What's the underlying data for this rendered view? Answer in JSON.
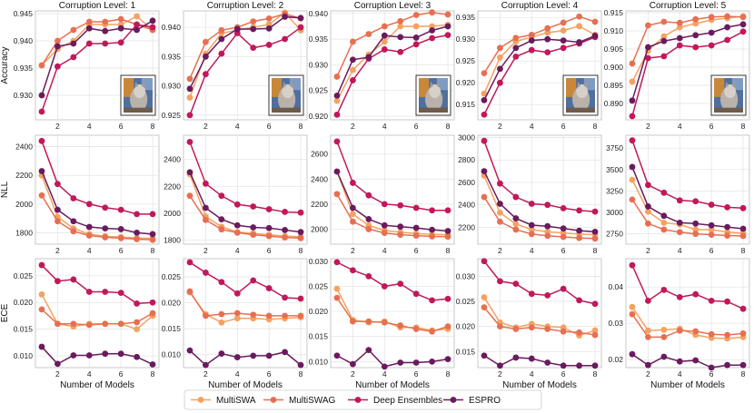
{
  "legend": {
    "items": [
      {
        "name": "MultiSWA",
        "color": "#f4a261"
      },
      {
        "name": "MultiSWAG",
        "color": "#e76f51"
      },
      {
        "name": "Deep Ensembles",
        "color": "#c2185b"
      },
      {
        "name": "ESPRO",
        "color": "#6a1b5e"
      }
    ]
  },
  "chart_data": {
    "type": "line",
    "layout": "3x5 grid",
    "xlabel": "Number of Models",
    "x": [
      1,
      2,
      3,
      4,
      5,
      6,
      7,
      8
    ],
    "xticks": [
      2,
      4,
      6,
      8
    ],
    "xlim": [
      0.6,
      8.4
    ],
    "column_titles": [
      "Corruption Level: 1",
      "Corruption Level: 2",
      "Corruption Level: 3",
      "Corruption Level: 4",
      "Corruption Level: 5"
    ],
    "row_labels": [
      "Accuracy",
      "NLL",
      "ECE"
    ],
    "series_names": [
      "MultiSWA",
      "MultiSWAG",
      "Deep Ensembles",
      "ESPRO"
    ],
    "panels": [
      {
        "row": 0,
        "col": 0,
        "ylim": [
          0.9255,
          0.9455
        ],
        "yticks": [
          0.93,
          0.935,
          0.94,
          0.945
        ],
        "ytick_labels": [
          "0.930",
          "0.935",
          "0.940",
          "0.945"
        ],
        "inset_image": true,
        "series": [
          [
            0.9355,
            0.9385,
            0.94,
            0.943,
            0.943,
            0.943,
            0.9445,
            0.942
          ],
          [
            0.9355,
            0.94,
            0.942,
            0.9435,
            0.9435,
            0.944,
            0.943,
            0.942
          ],
          [
            0.927,
            0.9353,
            0.937,
            0.9395,
            0.9395,
            0.9397,
            0.943,
            0.9425
          ],
          [
            0.93,
            0.939,
            0.9395,
            0.9423,
            0.9418,
            0.9423,
            0.942,
            0.9437
          ]
        ]
      },
      {
        "row": 0,
        "col": 1,
        "ylim": [
          0.9242,
          0.9428
        ],
        "yticks": [
          0.925,
          0.93,
          0.935,
          0.94
        ],
        "ytick_labels": [
          "0.925",
          "0.930",
          "0.935",
          "0.940"
        ],
        "inset_image": true,
        "series": [
          [
            0.928,
            0.9355,
            0.939,
            0.9395,
            0.94,
            0.9405,
            0.9425,
            0.9395
          ],
          [
            0.9312,
            0.9375,
            0.9395,
            0.94,
            0.941,
            0.9415,
            0.9423,
            0.9415
          ],
          [
            0.925,
            0.932,
            0.9355,
            0.939,
            0.9365,
            0.937,
            0.938,
            0.94
          ],
          [
            0.9295,
            0.935,
            0.938,
            0.9397,
            0.9397,
            0.9398,
            0.9418,
            0.9416
          ]
        ]
      },
      {
        "row": 0,
        "col": 2,
        "ylim": [
          0.9193,
          0.9405
        ],
        "yticks": [
          0.92,
          0.925,
          0.93,
          0.935,
          0.94
        ],
        "ytick_labels": [
          "0.920",
          "0.925",
          "0.930",
          "0.935",
          "0.940"
        ],
        "inset_image": true,
        "series": [
          [
            0.923,
            0.929,
            0.932,
            0.9345,
            0.9375,
            0.9375,
            0.9375,
            0.9378
          ],
          [
            0.9277,
            0.9345,
            0.936,
            0.9375,
            0.9385,
            0.9397,
            0.9402,
            0.9398
          ],
          [
            0.9203,
            0.927,
            0.9312,
            0.933,
            0.9325,
            0.934,
            0.9352,
            0.9358
          ],
          [
            0.924,
            0.931,
            0.9315,
            0.9357,
            0.9354,
            0.9353,
            0.9367,
            0.9375
          ]
        ]
      },
      {
        "row": 0,
        "col": 3,
        "ylim": [
          0.9115,
          0.9365
        ],
        "yticks": [
          0.915,
          0.92,
          0.925,
          0.93,
          0.935
        ],
        "ytick_labels": [
          "0.915",
          "0.920",
          "0.925",
          "0.930",
          "0.935"
        ],
        "inset_image": true,
        "series": [
          [
            0.9175,
            0.9258,
            0.9295,
            0.9305,
            0.9315,
            0.932,
            0.933,
            0.931
          ],
          [
            0.9222,
            0.928,
            0.9303,
            0.931,
            0.9325,
            0.9338,
            0.9352,
            0.934
          ],
          [
            0.9127,
            0.92,
            0.926,
            0.9275,
            0.927,
            0.928,
            0.929,
            0.9305
          ],
          [
            0.916,
            0.9232,
            0.928,
            0.9297,
            0.93,
            0.9297,
            0.9293,
            0.9308
          ]
        ]
      },
      {
        "row": 0,
        "col": 4,
        "ylim": [
          0.8855,
          0.9155
        ],
        "yticks": [
          0.89,
          0.895,
          0.9,
          0.905,
          0.91,
          0.915
        ],
        "ytick_labels": [
          "0.890",
          "0.895",
          "0.900",
          "0.905",
          "0.910",
          "0.915"
        ],
        "inset_image": true,
        "series": [
          [
            0.896,
            0.9045,
            0.9085,
            0.911,
            0.912,
            0.913,
            0.9135,
            0.914
          ],
          [
            0.901,
            0.9115,
            0.9125,
            0.9122,
            0.9132,
            0.9138,
            0.914,
            0.9138
          ],
          [
            0.8865,
            0.9025,
            0.903,
            0.906,
            0.9055,
            0.906,
            0.9075,
            0.9098
          ],
          [
            0.8908,
            0.9055,
            0.9072,
            0.908,
            0.9088,
            0.9095,
            0.911,
            0.9118
          ]
        ]
      },
      {
        "row": 1,
        "col": 0,
        "ylim": [
          1720,
          2480
        ],
        "yticks": [
          1800,
          2000,
          2200,
          2400
        ],
        "ytick_labels": [
          "1800",
          "2000",
          "2200",
          "2400"
        ],
        "inset_image": false,
        "series": [
          [
            2200,
            1910,
            1830,
            1790,
            1775,
            1770,
            1763,
            1760
          ],
          [
            2060,
            1880,
            1810,
            1780,
            1768,
            1762,
            1755,
            1750
          ],
          [
            2440,
            2140,
            2040,
            2000,
            1975,
            1960,
            1930,
            1930
          ],
          [
            2230,
            1960,
            1880,
            1840,
            1830,
            1825,
            1800,
            1790
          ]
        ]
      },
      {
        "row": 1,
        "col": 1,
        "ylim": [
          1770,
          2580
        ],
        "yticks": [
          1800,
          2000,
          2200,
          2400
        ],
        "ytick_labels": [
          "1800",
          "2000",
          "2200",
          "2400"
        ],
        "inset_image": false,
        "series": [
          [
            2290,
            1975,
            1900,
            1860,
            1850,
            1840,
            1830,
            1825
          ],
          [
            2130,
            1950,
            1880,
            1855,
            1840,
            1830,
            1820,
            1815
          ],
          [
            2530,
            2220,
            2130,
            2065,
            2050,
            2030,
            2010,
            2005
          ],
          [
            2305,
            2040,
            1955,
            1910,
            1895,
            1890,
            1875,
            1860
          ]
        ]
      },
      {
        "row": 1,
        "col": 2,
        "ylim": [
          1880,
          2750
        ],
        "yticks": [
          2000,
          2200,
          2400,
          2600
        ],
        "ytick_labels": [
          "2000",
          "2200",
          "2400",
          "2600"
        ],
        "inset_image": false,
        "series": [
          [
            2460,
            2120,
            2030,
            1990,
            1975,
            1965,
            1958,
            1955
          ],
          [
            2280,
            2060,
            2000,
            1970,
            1955,
            1948,
            1942,
            1940
          ],
          [
            2700,
            2370,
            2270,
            2200,
            2190,
            2170,
            2150,
            2150
          ],
          [
            2460,
            2170,
            2080,
            2030,
            2020,
            2010,
            1995,
            1985
          ]
        ]
      },
      {
        "row": 1,
        "col": 3,
        "ylim": [
          2050,
          3020
        ],
        "yticks": [
          2200,
          2400,
          2600,
          2800,
          3000
        ],
        "ytick_labels": [
          "2200",
          "2400",
          "2600",
          "2800",
          "3000"
        ],
        "inset_image": false,
        "series": [
          [
            2660,
            2330,
            2230,
            2180,
            2160,
            2150,
            2140,
            2135
          ],
          [
            2470,
            2250,
            2180,
            2140,
            2125,
            2115,
            2105,
            2100
          ],
          [
            2970,
            2590,
            2470,
            2410,
            2400,
            2370,
            2350,
            2340
          ],
          [
            2700,
            2410,
            2280,
            2220,
            2210,
            2190,
            2170,
            2160
          ]
        ]
      },
      {
        "row": 1,
        "col": 4,
        "ylim": [
          2630,
          3900
        ],
        "yticks": [
          2750,
          3000,
          3250,
          3500,
          3750
        ],
        "ytick_labels": [
          "2750",
          "3000",
          "3250",
          "3500",
          "3750"
        ],
        "inset_image": false,
        "series": [
          [
            3380,
            3010,
            2880,
            2860,
            2800,
            2800,
            2770,
            2760
          ],
          [
            3150,
            2870,
            2800,
            2770,
            2750,
            2740,
            2730,
            2725
          ],
          [
            3840,
            3320,
            3230,
            3140,
            3130,
            3090,
            3060,
            3050
          ],
          [
            3530,
            3070,
            2960,
            2880,
            2870,
            2850,
            2830,
            2810
          ]
        ]
      },
      {
        "row": 2,
        "col": 0,
        "ylim": [
          0.0078,
          0.0282
        ],
        "yticks": [
          0.01,
          0.015,
          0.02,
          0.025
        ],
        "ytick_labels": [
          "0.010",
          "0.015",
          "0.020",
          "0.025"
        ],
        "inset_image": false,
        "series": [
          [
            0.0215,
            0.016,
            0.0155,
            0.016,
            0.016,
            0.016,
            0.015,
            0.0175
          ],
          [
            0.0187,
            0.016,
            0.016,
            0.0158,
            0.016,
            0.016,
            0.0163,
            0.018
          ],
          [
            0.027,
            0.024,
            0.0243,
            0.022,
            0.022,
            0.0218,
            0.0198,
            0.02
          ],
          [
            0.0117,
            0.0085,
            0.0101,
            0.0101,
            0.0104,
            0.0104,
            0.0098,
            0.0084
          ]
        ]
      },
      {
        "row": 2,
        "col": 1,
        "ylim": [
          0.0075,
          0.0285
        ],
        "yticks": [
          0.01,
          0.015,
          0.02,
          0.025
        ],
        "ytick_labels": [
          "0.010",
          "0.015",
          "0.020",
          "0.025"
        ],
        "inset_image": false,
        "series": [
          [
            0.022,
            0.0178,
            0.0162,
            0.017,
            0.017,
            0.0168,
            0.017,
            0.0172
          ],
          [
            0.0222,
            0.0175,
            0.0178,
            0.018,
            0.0177,
            0.0175,
            0.0175,
            0.0175
          ],
          [
            0.0278,
            0.0258,
            0.024,
            0.0218,
            0.0243,
            0.0228,
            0.021,
            0.0208
          ],
          [
            0.0108,
            0.008,
            0.0102,
            0.0095,
            0.0098,
            0.0098,
            0.0105,
            0.008
          ]
        ]
      },
      {
        "row": 2,
        "col": 2,
        "ylim": [
          0.0088,
          0.0305
        ],
        "yticks": [
          0.01,
          0.015,
          0.02,
          0.025,
          0.03
        ],
        "ytick_labels": [
          "0.010",
          "0.015",
          "0.020",
          "0.025",
          "0.030"
        ],
        "inset_image": false,
        "series": [
          [
            0.0245,
            0.0183,
            0.0178,
            0.018,
            0.0168,
            0.0168,
            0.0162,
            0.0165
          ],
          [
            0.0227,
            0.018,
            0.018,
            0.0178,
            0.0172,
            0.0165,
            0.016,
            0.017
          ],
          [
            0.0298,
            0.0282,
            0.027,
            0.025,
            0.0255,
            0.0235,
            0.0222,
            0.0225
          ],
          [
            0.0112,
            0.0095,
            0.0123,
            0.009,
            0.0098,
            0.0098,
            0.01,
            0.0105
          ]
        ]
      },
      {
        "row": 2,
        "col": 3,
        "ylim": [
          0.0118,
          0.0335
        ],
        "yticks": [
          0.015,
          0.02,
          0.025,
          0.03
        ],
        "ytick_labels": [
          "0.015",
          "0.020",
          "0.025",
          "0.030"
        ],
        "inset_image": false,
        "series": [
          [
            0.0258,
            0.0208,
            0.0198,
            0.0205,
            0.02,
            0.0198,
            0.0182,
            0.0192
          ],
          [
            0.0238,
            0.02,
            0.0195,
            0.0198,
            0.0195,
            0.019,
            0.0188,
            0.0183
          ],
          [
            0.033,
            0.029,
            0.0285,
            0.0265,
            0.0262,
            0.0275,
            0.0252,
            0.0245
          ],
          [
            0.0142,
            0.0122,
            0.0138,
            0.0136,
            0.0128,
            0.0122,
            0.0122,
            0.0122
          ]
        ]
      },
      {
        "row": 2,
        "col": 4,
        "ylim": [
          0.0178,
          0.0478
        ],
        "yticks": [
          0.02,
          0.03,
          0.04
        ],
        "ytick_labels": [
          "0.02",
          "0.03",
          "0.04"
        ],
        "inset_image": false,
        "series": [
          [
            0.0345,
            0.028,
            0.0282,
            0.0285,
            0.0268,
            0.026,
            0.0258,
            0.0262
          ],
          [
            0.0325,
            0.0262,
            0.0262,
            0.028,
            0.0278,
            0.027,
            0.0268,
            0.0272
          ],
          [
            0.046,
            0.0362,
            0.0392,
            0.0372,
            0.038,
            0.0362,
            0.036,
            0.034
          ],
          [
            0.0215,
            0.0185,
            0.0208,
            0.0195,
            0.0198,
            0.0178,
            0.0185,
            0.0185
          ]
        ]
      }
    ]
  }
}
